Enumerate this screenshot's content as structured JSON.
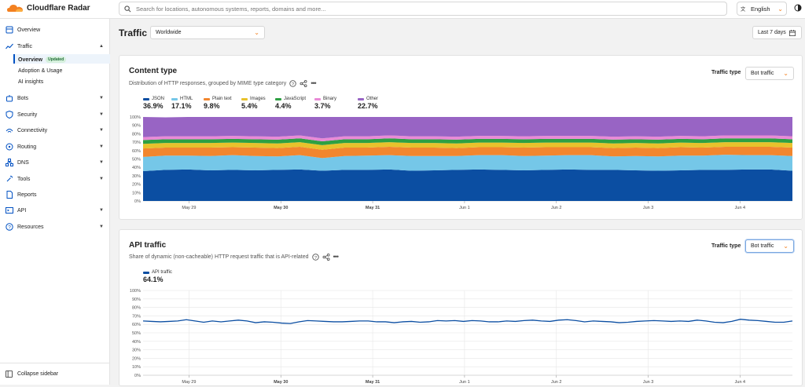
{
  "app": {
    "title": "Cloudflare Radar"
  },
  "search": {
    "placeholder": "Search for locations, autonomous systems, reports, domains and more..."
  },
  "language": {
    "label": "English"
  },
  "colors": {
    "accent": "#f38020",
    "brand_blue": "#0051c3"
  },
  "sidebar": {
    "items": [
      {
        "label": "Overview",
        "icon": "overview-icon",
        "has_arrow": false
      },
      {
        "label": "Traffic",
        "icon": "traffic-icon",
        "has_arrow": true
      },
      {
        "label": "Bots",
        "icon": "bots-icon",
        "has_arrow": true
      },
      {
        "label": "Security",
        "icon": "shield-icon",
        "has_arrow": true
      },
      {
        "label": "Connectivity",
        "icon": "connectivity-icon",
        "has_arrow": true
      },
      {
        "label": "Routing",
        "icon": "routing-icon",
        "has_arrow": true
      },
      {
        "label": "DNS",
        "icon": "dns-icon",
        "has_arrow": true
      },
      {
        "label": "Tools",
        "icon": "tools-icon",
        "has_arrow": true
      },
      {
        "label": "Reports",
        "icon": "reports-icon",
        "has_arrow": false
      },
      {
        "label": "API",
        "icon": "api-icon",
        "has_arrow": true
      },
      {
        "label": "Resources",
        "icon": "help-icon",
        "has_arrow": true
      }
    ],
    "traffic_sub": [
      {
        "label": "Overview",
        "badge": "Updated",
        "active": true
      },
      {
        "label": "Adoption & Usage"
      },
      {
        "label": "AI insights"
      }
    ],
    "collapse_label": "Collapse sidebar"
  },
  "header": {
    "title": "Traffic",
    "region": "Worldwide",
    "date_range": "Last 7 days"
  },
  "content_type": {
    "title": "Content type",
    "description": "Distribution of HTTP responses, grouped by MIME type category",
    "traffic_type_label": "Traffic type",
    "traffic_type_value": "Bot traffic"
  },
  "api_traffic": {
    "title": "API traffic",
    "description": "Share of dynamic (non-cacheable) HTTP request traffic that is API-related",
    "traffic_type_label": "Traffic type",
    "traffic_type_value": "Bot traffic"
  },
  "chart_data": [
    {
      "type": "area",
      "stacked": true,
      "x_labels": [
        "May 29",
        "May 30",
        "May 31",
        "Jun 1",
        "Jun 2",
        "Jun 3",
        "Jun 4"
      ],
      "bold_x_labels": [
        "May 30",
        "May 31"
      ],
      "ylim": [
        0,
        100
      ],
      "y_ticks": [
        "0%",
        "10%",
        "20%",
        "30%",
        "40%",
        "50%",
        "60%",
        "70%",
        "80%",
        "90%",
        "100%"
      ],
      "legend_placement": "top-left",
      "series": [
        {
          "name": "JSON",
          "value_label": "36.9%",
          "color": "#0b4ea2",
          "values": [
            35.5,
            37,
            37.5,
            36.5,
            37,
            36.5,
            37,
            37.5,
            36,
            37,
            37,
            37.5,
            36,
            36.5,
            37,
            37.5,
            37,
            36.5,
            37,
            37.5,
            37,
            37,
            36.5,
            36,
            36.5,
            37,
            37,
            37.5,
            37.5,
            36
          ]
        },
        {
          "name": "HTML",
          "value_label": "17.1%",
          "color": "#75c7e8",
          "values": [
            17,
            17,
            16.5,
            17,
            17.5,
            17,
            16,
            17,
            15,
            16.5,
            17,
            17,
            17.5,
            17,
            16.5,
            17,
            17.5,
            17,
            17,
            17,
            17.5,
            16,
            17,
            17,
            17.5,
            17,
            18,
            17,
            17,
            17.5
          ]
        },
        {
          "name": "Plain text",
          "value_label": "9.8%",
          "color": "#f2862e",
          "values": [
            10,
            9.5,
            9.5,
            10,
            9.5,
            10,
            10,
            10,
            10,
            10,
            9.5,
            10,
            10,
            10,
            9.5,
            9.5,
            9.5,
            10,
            10,
            9.5,
            9.5,
            10,
            10,
            10,
            10,
            9.5,
            9.5,
            10,
            10,
            10
          ]
        },
        {
          "name": "Images",
          "value_label": "5.4%",
          "color": "#e8c22c",
          "values": [
            5.5,
            5.5,
            5.5,
            5.5,
            5.5,
            5.5,
            5.5,
            5.5,
            5.5,
            5.5,
            5.5,
            5.5,
            5.5,
            5.5,
            5.5,
            5.5,
            5.5,
            5.5,
            5.5,
            5.5,
            5.5,
            5.5,
            5.5,
            5.5,
            5.5,
            5.5,
            5.5,
            5.5,
            5.5,
            5.5
          ]
        },
        {
          "name": "JavaScript",
          "value_label": "4.4%",
          "color": "#2ea043",
          "values": [
            4.5,
            4.5,
            4.5,
            4.5,
            4.5,
            4.5,
            4.5,
            4.5,
            4.5,
            4.5,
            4.5,
            4.5,
            4.5,
            4.5,
            4.5,
            4.5,
            4.5,
            4.5,
            4.5,
            4.5,
            4.5,
            4.5,
            4.5,
            4.5,
            4.5,
            4.5,
            4.5,
            4.5,
            4.5,
            4.5
          ]
        },
        {
          "name": "Binary",
          "value_label": "3.7%",
          "color": "#e98ad6",
          "values": [
            3.5,
            3.5,
            3.5,
            3.5,
            3.5,
            3.5,
            3.5,
            3.5,
            3.5,
            3.5,
            3.5,
            3.5,
            3.5,
            3.5,
            3.5,
            3.5,
            3.5,
            3.5,
            3.5,
            3.5,
            3.5,
            3.5,
            3.5,
            3.5,
            3.5,
            3.5,
            3.5,
            3.5,
            3.5,
            3.5
          ]
        },
        {
          "name": "Other",
          "value_label": "22.7%",
          "color": "#9864c4",
          "values": [
            24,
            22.5,
            23,
            23,
            22.5,
            23,
            23.5,
            22,
            25.5,
            23,
            23,
            22,
            23,
            23,
            23.5,
            23,
            23,
            23,
            22.5,
            23,
            23,
            23.5,
            23,
            23.5,
            22.5,
            23,
            22,
            22,
            22,
            23
          ]
        }
      ]
    },
    {
      "type": "line",
      "x_labels": [
        "May 29",
        "May 30",
        "May 31",
        "Jun 1",
        "Jun 2",
        "Jun 3",
        "Jun 4"
      ],
      "bold_x_labels": [
        "May 30",
        "May 31"
      ],
      "ylim": [
        0,
        100
      ],
      "y_ticks": [
        "0%",
        "10%",
        "20%",
        "30%",
        "40%",
        "50%",
        "60%",
        "70%",
        "80%",
        "90%",
        "100%"
      ],
      "grid": true,
      "legend_placement": "top-left",
      "series": [
        {
          "name": "API traffic",
          "value_label": "64.1%",
          "color": "#0b4ea2",
          "values": [
            64,
            63.5,
            63,
            63.5,
            64,
            65.5,
            64,
            62.5,
            64,
            63,
            64,
            65,
            64,
            62,
            63,
            62.5,
            61.5,
            61,
            63,
            64.5,
            64,
            63.5,
            63,
            63,
            63.5,
            64,
            64,
            63,
            63,
            62,
            63,
            63.5,
            62.5,
            63,
            64.5,
            64,
            64.5,
            63.5,
            64.5,
            64,
            63,
            63,
            64,
            63.5,
            64.5,
            65,
            64,
            63.5,
            65,
            65.5,
            64.5,
            63,
            64,
            63.5,
            63,
            62,
            62.5,
            63.5,
            64,
            64.5,
            64,
            63.5,
            64,
            63.5,
            65,
            64,
            62.5,
            62,
            63.5,
            66,
            65,
            64.5,
            63.5,
            62.5,
            62.5,
            64
          ]
        }
      ]
    }
  ]
}
